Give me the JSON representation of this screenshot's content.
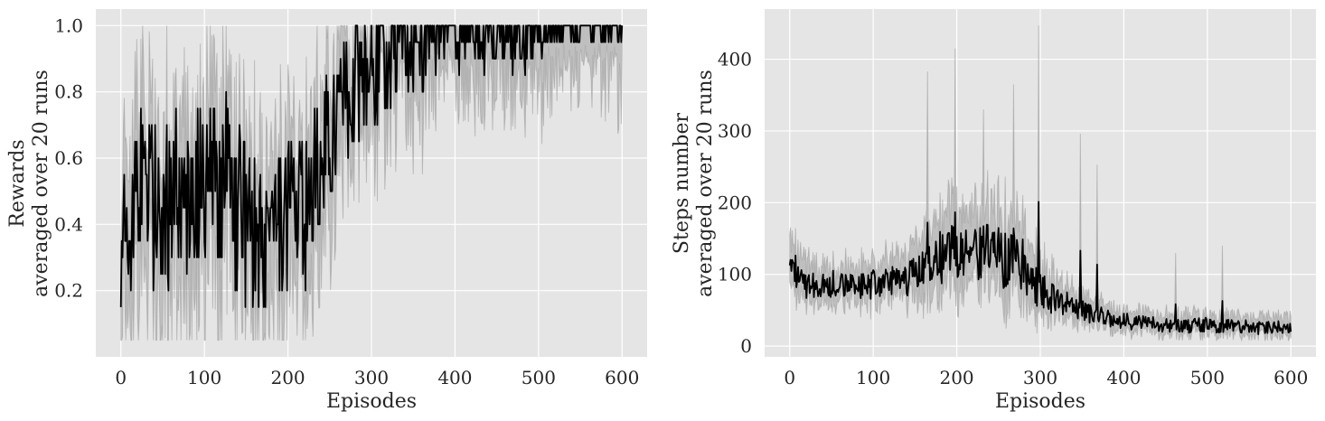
{
  "chart_data": [
    {
      "type": "line",
      "title": "",
      "xlabel": "Episodes",
      "ylabel_lines": [
        "Rewards",
        "averaged over 20 runs"
      ],
      "xlim": [
        -30,
        630
      ],
      "ylim": [
        0.0,
        1.05
      ],
      "xticks": [
        0,
        100,
        200,
        300,
        400,
        500,
        600
      ],
      "xtick_labels": [
        "0",
        "100",
        "200",
        "300",
        "400",
        "500",
        "600"
      ],
      "yticks": [
        0.2,
        0.4,
        0.6,
        0.8,
        1.0
      ],
      "ytick_labels": [
        "0.2",
        "0.4",
        "0.6",
        "0.8",
        "1.0"
      ],
      "grid": true,
      "background": "#e5e5e5",
      "series_color": "#000000",
      "band_color": "#a0a0a0",
      "x": [
        0,
        20,
        40,
        60,
        80,
        100,
        120,
        140,
        160,
        180,
        200,
        220,
        240,
        260,
        280,
        300,
        320,
        340,
        360,
        380,
        400,
        420,
        440,
        460,
        480,
        500,
        520,
        540,
        560,
        580,
        600
      ],
      "series": [
        {
          "values": [
            0.3,
            0.55,
            0.45,
            0.5,
            0.45,
            0.55,
            0.55,
            0.45,
            0.35,
            0.3,
            0.4,
            0.45,
            0.6,
            0.75,
            0.8,
            0.85,
            0.85,
            0.9,
            0.9,
            0.95,
            0.95,
            0.95,
            0.95,
            0.95,
            0.95,
            0.97,
            0.98,
            0.98,
            0.98,
            1.0,
            1.0
          ],
          "lower": [
            0.1,
            0.3,
            0.2,
            0.25,
            0.2,
            0.3,
            0.3,
            0.2,
            0.1,
            0.1,
            0.15,
            0.25,
            0.4,
            0.6,
            0.7,
            0.75,
            0.75,
            0.8,
            0.8,
            0.85,
            0.85,
            0.85,
            0.85,
            0.85,
            0.85,
            0.85,
            0.9,
            0.9,
            0.9,
            0.9,
            0.85
          ],
          "upper": [
            0.5,
            0.8,
            0.7,
            0.75,
            0.7,
            0.85,
            0.8,
            0.7,
            0.55,
            0.5,
            0.65,
            0.7,
            0.85,
            0.95,
            1.0,
            1.0,
            1.0,
            1.0,
            1.0,
            1.0,
            1.0,
            1.0,
            1.0,
            1.0,
            1.0,
            1.0,
            1.0,
            1.0,
            1.0,
            1.0,
            1.0
          ]
        }
      ]
    },
    {
      "type": "line",
      "title": "",
      "xlabel": "Episodes",
      "ylabel_lines": [
        "Steps number",
        "averaged over 20 runs"
      ],
      "xlim": [
        -30,
        630
      ],
      "ylim": [
        -15,
        470
      ],
      "xticks": [
        0,
        100,
        200,
        300,
        400,
        500,
        600
      ],
      "xtick_labels": [
        "0",
        "100",
        "200",
        "300",
        "400",
        "500",
        "600"
      ],
      "yticks": [
        0,
        100,
        200,
        300,
        400
      ],
      "ytick_labels": [
        "0",
        "100",
        "200",
        "300",
        "400"
      ],
      "grid": true,
      "background": "#e5e5e5",
      "series_color": "#000000",
      "band_color": "#a0a0a0",
      "x": [
        0,
        20,
        40,
        60,
        80,
        100,
        120,
        140,
        160,
        180,
        200,
        220,
        240,
        260,
        280,
        300,
        320,
        340,
        360,
        380,
        400,
        420,
        440,
        460,
        480,
        500,
        520,
        540,
        560,
        580,
        600
      ],
      "series": [
        {
          "values": [
            110,
            85,
            85,
            90,
            85,
            85,
            90,
            90,
            110,
            120,
            130,
            125,
            130,
            120,
            110,
            80,
            60,
            55,
            45,
            40,
            35,
            32,
            30,
            30,
            28,
            30,
            28,
            27,
            25,
            27,
            30
          ],
          "lower": [
            80,
            60,
            60,
            65,
            60,
            60,
            65,
            65,
            80,
            85,
            90,
            90,
            90,
            80,
            70,
            50,
            40,
            35,
            30,
            25,
            22,
            20,
            18,
            18,
            17,
            18,
            17,
            16,
            15,
            16,
            18
          ],
          "upper": [
            160,
            120,
            115,
            120,
            115,
            120,
            125,
            130,
            180,
            200,
            210,
            200,
            210,
            200,
            180,
            130,
            95,
            85,
            70,
            60,
            55,
            50,
            48,
            48,
            45,
            48,
            45,
            45,
            42,
            44,
            50
          ]
        }
      ],
      "peaks": [
        {
          "x": 165,
          "y": 383
        },
        {
          "x": 198,
          "y": 415
        },
        {
          "x": 232,
          "y": 330
        },
        {
          "x": 268,
          "y": 365
        },
        {
          "x": 298,
          "y": 447
        },
        {
          "x": 348,
          "y": 296
        },
        {
          "x": 368,
          "y": 253
        },
        {
          "x": 462,
          "y": 130
        },
        {
          "x": 518,
          "y": 140
        }
      ]
    }
  ]
}
